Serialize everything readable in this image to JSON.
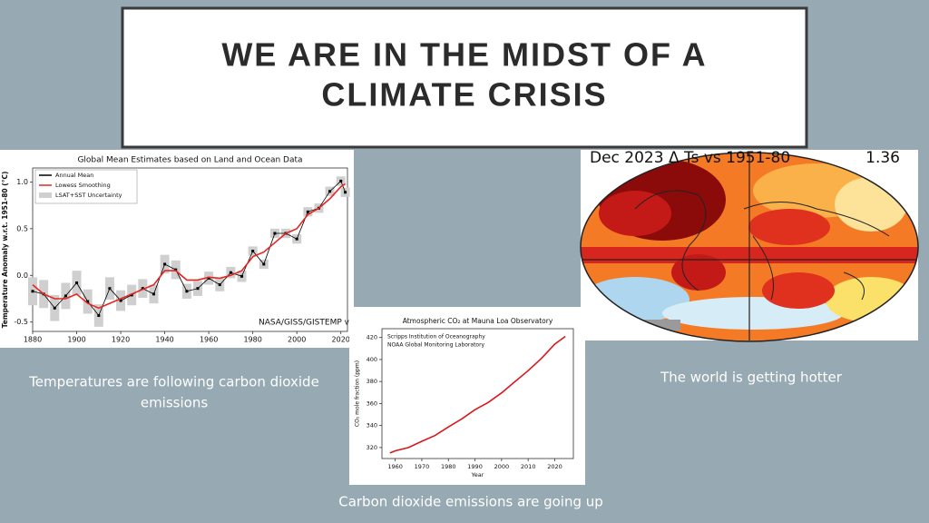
{
  "title": [
    "WE ARE IN THE MIDST OF A",
    "CLIMATE CRISIS"
  ],
  "captions": {
    "left": [
      "Temperatures are following  carbon dioxide",
      "emissions"
    ],
    "right": "The world is getting hotter",
    "bottom": "Carbon dioxide emissions are going up"
  },
  "map": {
    "title": "Dec 2023 Δ Ts vs 1951-80",
    "value": "1.36"
  },
  "chart_data": [
    {
      "type": "line",
      "title": "Global Mean Estimates based on Land and Ocean Data",
      "y_label": "Temperature Anomaly w.r.t. 1951-80 (°C)",
      "source": "NASA/GISS/GISTEMP v",
      "x": [
        1880,
        1885,
        1890,
        1895,
        1900,
        1905,
        1910,
        1915,
        1920,
        1925,
        1930,
        1935,
        1940,
        1945,
        1950,
        1955,
        1960,
        1965,
        1970,
        1975,
        1980,
        1985,
        1990,
        1995,
        2000,
        2005,
        2010,
        2015,
        2020,
        2022
      ],
      "series": [
        {
          "name": "Annual Mean",
          "color": "#000000",
          "markers": true,
          "values": [
            -0.17,
            -0.2,
            -0.35,
            -0.22,
            -0.08,
            -0.28,
            -0.43,
            -0.14,
            -0.27,
            -0.21,
            -0.14,
            -0.2,
            0.12,
            0.06,
            -0.17,
            -0.14,
            -0.03,
            -0.1,
            0.03,
            -0.01,
            0.26,
            0.12,
            0.45,
            0.45,
            0.39,
            0.68,
            0.72,
            0.9,
            1.01,
            0.89
          ]
        },
        {
          "name": "Lowess Smoothing",
          "color": "#e8251f",
          "markers": false,
          "values": [
            -0.1,
            -0.2,
            -0.25,
            -0.25,
            -0.2,
            -0.3,
            -0.35,
            -0.3,
            -0.25,
            -0.2,
            -0.15,
            -0.1,
            0.05,
            0.05,
            -0.05,
            -0.05,
            -0.02,
            -0.03,
            0.0,
            0.05,
            0.2,
            0.25,
            0.35,
            0.45,
            0.5,
            0.65,
            0.72,
            0.82,
            0.95,
            0.98
          ]
        }
      ],
      "uncertainty": {
        "name": "LSAT+SST Uncertainty",
        "color": "#cfcfcf",
        "errors": [
          0.15,
          0.15,
          0.14,
          0.14,
          0.13,
          0.13,
          0.12,
          0.12,
          0.11,
          0.11,
          0.1,
          0.1,
          0.1,
          0.1,
          0.08,
          0.08,
          0.07,
          0.07,
          0.06,
          0.06,
          0.05,
          0.05,
          0.05,
          0.05,
          0.05,
          0.05,
          0.05,
          0.05,
          0.05,
          0.05
        ]
      },
      "xlim": [
        1880,
        2023
      ],
      "ylim": [
        -0.6,
        1.15
      ],
      "xticks": [
        1880,
        1900,
        1920,
        1940,
        1960,
        1980,
        2000,
        2020
      ],
      "yticks": [
        -0.5,
        {
          "value": 0,
          "label": "0.0"
        },
        0.5,
        {
          "value": 1,
          "label": "1.0"
        }
      ],
      "grid": false
    },
    {
      "type": "line",
      "title": "Atmospheric CO₂ at Mauna Loa Observatory",
      "y_label": "CO₂ mole fraction (ppm)",
      "x_label": "Year",
      "annotations": [
        "Scripps Institution of Oceanography",
        "NOAA Global Monitoring Laboratory"
      ],
      "x": [
        1958,
        1960,
        1965,
        1970,
        1975,
        1980,
        1985,
        1990,
        1995,
        2000,
        2005,
        2010,
        2015,
        2020,
        2024
      ],
      "series": [
        {
          "name": null,
          "color": "#d7191c",
          "markers": false,
          "values": [
            315,
            317,
            320,
            325.7,
            331,
            338.7,
            346,
            354.4,
            361,
            369.7,
            379.8,
            389.9,
            401,
            414,
            421
          ]
        }
      ],
      "xlim": [
        1955,
        2027
      ],
      "ylim": [
        310,
        428
      ],
      "xticks": [
        1960,
        1970,
        1980,
        1990,
        2000,
        2010,
        2020
      ],
      "yticks": [
        320,
        340,
        360,
        380,
        400,
        420
      ],
      "grid": false
    }
  ]
}
